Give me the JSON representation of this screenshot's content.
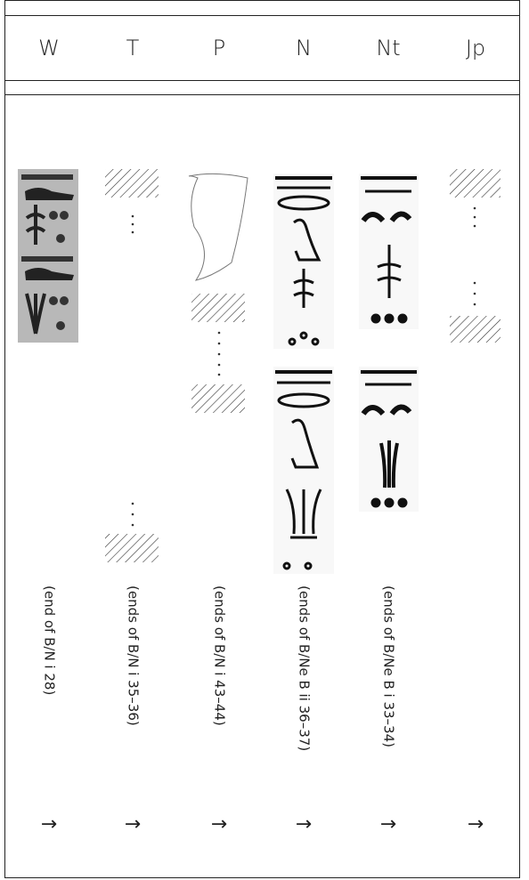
{
  "header": {
    "columns": [
      "W",
      "T",
      "P",
      "N",
      "Nt",
      "Jp"
    ]
  },
  "notes": [
    "(end of B/N i 28)",
    "(ends of B/N i 35–36)",
    "(ends of B/N i 43–44)",
    "(ends of B/Ne B ii 36–37)",
    "(ends of B/Ne B i 33–34)"
  ],
  "arrows": [
    "→",
    "→",
    "→",
    "→",
    "→",
    "→"
  ]
}
